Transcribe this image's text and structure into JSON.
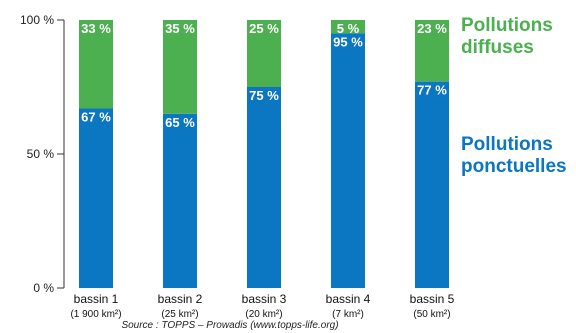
{
  "chart_data": {
    "type": "bar",
    "stacked": true,
    "categories": [
      "bassin 1",
      "bassin 2",
      "bassin 3",
      "bassin 4",
      "bassin 5"
    ],
    "category_areas": [
      "(1 900 km²)",
      "(25 km²)",
      "(20 km²)",
      "(7 km²)",
      "(50 km²)"
    ],
    "series": [
      {
        "name_lines": [
          "Pollutions",
          "ponctuelles"
        ],
        "values": [
          67,
          65,
          75,
          95,
          77
        ],
        "labels": [
          "67 %",
          "65 %",
          "75 %",
          "95 %",
          "77 %"
        ],
        "color": "#0b76c2"
      },
      {
        "name_lines": [
          "Pollutions",
          "diffuses"
        ],
        "values": [
          33,
          35,
          25,
          5,
          23
        ],
        "labels": [
          "33 %",
          "35 %",
          "25 %",
          "5 %",
          "23 %"
        ],
        "color": "#4caf50"
      }
    ],
    "yticks": [
      {
        "value": 0,
        "label": "0 %"
      },
      {
        "value": 50,
        "label": "50 %"
      },
      {
        "value": 100,
        "label": "100 %"
      }
    ],
    "ylim": [
      0,
      100
    ],
    "legend_position": "right",
    "source": "Source : TOPPS – Prowadis (www.topps-life.org)"
  }
}
